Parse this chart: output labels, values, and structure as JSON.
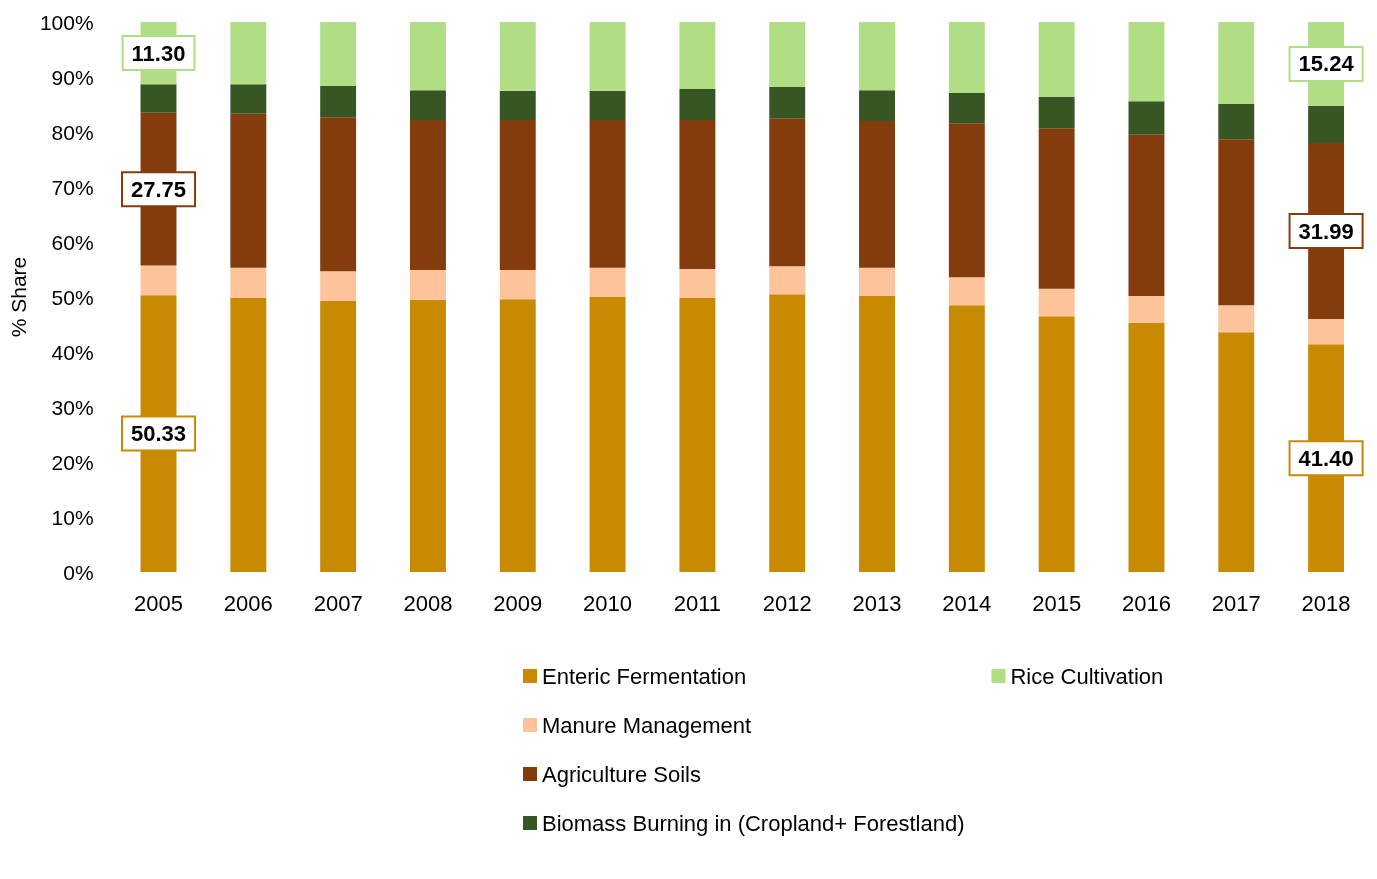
{
  "chart_data": {
    "type": "bar",
    "stacked": true,
    "ylabel": "% Share",
    "categories": [
      "2005",
      "2006",
      "2007",
      "2008",
      "2009",
      "2010",
      "2011",
      "2012",
      "2013",
      "2014",
      "2015",
      "2016",
      "2017",
      "2018"
    ],
    "series": [
      {
        "name": "Enteric Fermentation",
        "color": "#c88a00",
        "values": [
          50.33,
          49.8,
          49.3,
          49.5,
          49.6,
          50.0,
          49.8,
          50.5,
          50.2,
          48.5,
          46.5,
          45.3,
          43.6,
          41.4
        ],
        "value_labels": [
          "50.33",
          null,
          null,
          null,
          null,
          null,
          null,
          null,
          null,
          null,
          null,
          null,
          null,
          "41.40"
        ]
      },
      {
        "name": "Manure Management",
        "color": "#fdc39a",
        "values": [
          5.4,
          5.5,
          5.4,
          5.4,
          5.3,
          5.3,
          5.3,
          5.1,
          5.1,
          5.1,
          5.0,
          4.9,
          4.9,
          4.6
        ]
      },
      {
        "name": "Agriculture Soils",
        "color": "#843c0c",
        "values": [
          27.75,
          28.0,
          28.0,
          27.3,
          27.3,
          26.9,
          27.1,
          26.9,
          26.7,
          28.0,
          29.2,
          29.3,
          30.2,
          31.99
        ],
        "value_labels": [
          "27.75",
          null,
          null,
          null,
          null,
          null,
          null,
          null,
          null,
          null,
          null,
          null,
          null,
          "31.99"
        ]
      },
      {
        "name": "Biomass Burning in (Cropland+ Forestland)",
        "color": "#375623",
        "values": [
          5.22,
          5.4,
          5.7,
          5.4,
          5.3,
          5.3,
          5.6,
          5.7,
          5.6,
          5.5,
          5.7,
          6.1,
          6.4,
          6.77
        ]
      },
      {
        "name": "Rice Cultivation",
        "color": "#b1dd84",
        "values": [
          11.3,
          11.3,
          11.6,
          12.4,
          12.5,
          12.5,
          12.2,
          11.8,
          12.4,
          12.9,
          13.6,
          14.4,
          14.9,
          15.24
        ],
        "value_labels": [
          "11.30",
          null,
          null,
          null,
          null,
          null,
          null,
          null,
          null,
          null,
          null,
          null,
          null,
          "15.24"
        ]
      }
    ],
    "ylim": [
      0,
      100
    ],
    "yticks": [
      {
        "value": 0,
        "label": "0%"
      },
      {
        "value": 10,
        "label": "10%"
      },
      {
        "value": 20,
        "label": "20%"
      },
      {
        "value": 30,
        "label": "30%"
      },
      {
        "value": 40,
        "label": "40%"
      },
      {
        "value": 50,
        "label": "50%"
      },
      {
        "value": 60,
        "label": "60%"
      },
      {
        "value": 70,
        "label": "70%"
      },
      {
        "value": 80,
        "label": "80%"
      },
      {
        "value": 90,
        "label": "90%"
      },
      {
        "value": 100,
        "label": "100%"
      }
    ],
    "grid": false,
    "legend": "bottom"
  }
}
